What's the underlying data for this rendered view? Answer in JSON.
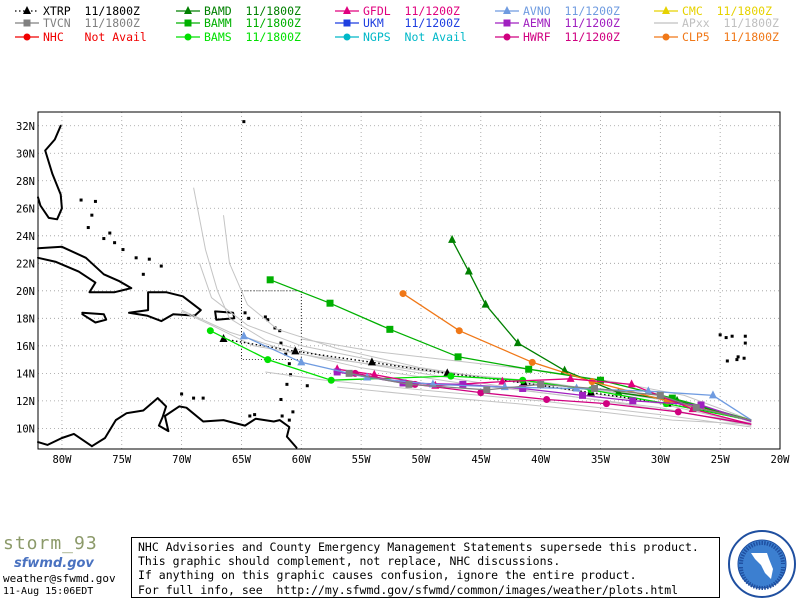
{
  "legend": [
    {
      "label": "XTRP  11/1800Z",
      "color": "#000000",
      "marker": "triangle",
      "dotted": true
    },
    {
      "label": "BAMD  11/1800Z",
      "color": "#008000",
      "marker": "triangle",
      "dotted": false
    },
    {
      "label": "GFDL  11/1200Z",
      "color": "#e0007e",
      "marker": "triangle",
      "dotted": false
    },
    {
      "label": "AVNO  11/1200Z",
      "color": "#6f9be0",
      "marker": "triangle",
      "dotted": false
    },
    {
      "label": "CMC  11/1800Z",
      "color": "#e6d200",
      "marker": "triangle",
      "dotted": false
    },
    {
      "label": "TVCN  11/1800Z",
      "color": "#808080",
      "marker": "square",
      "dotted": false
    },
    {
      "label": "BAMM  11/1800Z",
      "color": "#00b000",
      "marker": "square",
      "dotted": false
    },
    {
      "label": "UKM   11/1200Z",
      "color": "#1f3fe0",
      "marker": "square",
      "dotted": false
    },
    {
      "label": "AEMN  11/1200Z",
      "color": "#a020c0",
      "marker": "square",
      "dotted": false
    },
    {
      "label": "APxx  11/1800Z",
      "color": "#c0c0c0",
      "marker": "none",
      "dotted": false
    },
    {
      "label": "NHC   Not Avail",
      "color": "#f00000",
      "marker": "circle",
      "dotted": false
    },
    {
      "label": "BAMS  11/1800Z",
      "color": "#00e000",
      "marker": "circle",
      "dotted": false
    },
    {
      "label": "NGPS  Not Avail",
      "color": "#00b8c8",
      "marker": "circle",
      "dotted": false
    },
    {
      "label": "HWRF  11/1200Z",
      "color": "#d00080",
      "marker": "circle",
      "dotted": false
    },
    {
      "label": "CLP5  11/1800Z",
      "color": "#f07818",
      "marker": "circle",
      "dotted": false
    }
  ],
  "map": {
    "lat_labels": [
      "32N",
      "30N",
      "28N",
      "26N",
      "24N",
      "22N",
      "20N",
      "18N",
      "16N",
      "14N",
      "12N",
      "10N"
    ],
    "lon_labels": [
      "80W",
      "75W",
      "70W",
      "65W",
      "60W",
      "55W",
      "50W",
      "45W",
      "40W",
      "35W",
      "30W",
      "25W",
      "20W"
    ],
    "lat_range": [
      8.5,
      33
    ],
    "lon_range": [
      -82,
      -20
    ]
  },
  "tracks": [
    {
      "name": "XTRP",
      "color": "#000000",
      "dotted": true,
      "marker": "triangle",
      "points": [
        [
          -22.4,
          10.6
        ],
        [
          -29.4,
          11.8
        ],
        [
          -35.8,
          12.6
        ],
        [
          -41.4,
          13.3
        ],
        [
          -47.8,
          14.0
        ],
        [
          -54.1,
          14.8
        ],
        [
          -60.5,
          15.6
        ],
        [
          -66.5,
          16.5
        ]
      ]
    },
    {
      "name": "BAMD",
      "color": "#008000",
      "marker": "triangle",
      "points": [
        [
          -22.4,
          10.6
        ],
        [
          -28.6,
          12.0
        ],
        [
          -33.5,
          12.6
        ],
        [
          -38,
          14.2
        ],
        [
          -41.9,
          16.2
        ],
        [
          -44.6,
          19.0
        ],
        [
          -46.0,
          21.4
        ],
        [
          -47.4,
          23.7
        ]
      ]
    },
    {
      "name": "BAMM",
      "color": "#00b000",
      "marker": "square",
      "points": [
        [
          -22.4,
          10.6
        ],
        [
          -29.0,
          12.2
        ],
        [
          -35.0,
          13.5
        ],
        [
          -41.0,
          14.3
        ],
        [
          -46.9,
          15.2
        ],
        [
          -52.6,
          17.2
        ],
        [
          -57.6,
          19.1
        ],
        [
          -62.6,
          20.8
        ]
      ]
    },
    {
      "name": "BAMS",
      "color": "#00e000",
      "marker": "circle",
      "points": [
        [
          -22.4,
          10.6
        ],
        [
          -29.5,
          11.8
        ],
        [
          -35.8,
          12.8
        ],
        [
          -41.5,
          13.5
        ],
        [
          -47.5,
          13.8
        ],
        [
          -57.5,
          13.5
        ],
        [
          -62.8,
          15.0
        ],
        [
          -67.6,
          17.1
        ]
      ]
    },
    {
      "name": "CLP5",
      "color": "#f07818",
      "marker": "circle",
      "points": [
        [
          -22.4,
          10.6
        ],
        [
          -29.4,
          12.0
        ],
        [
          -35.7,
          13.4
        ],
        [
          -40.7,
          14.8
        ],
        [
          -46.8,
          17.1
        ],
        [
          -51.5,
          19.8
        ]
      ]
    },
    {
      "name": "GFDL",
      "color": "#e0007e",
      "marker": "triangle",
      "points": [
        [
          -22.4,
          10.3
        ],
        [
          -27.3,
          11.4
        ],
        [
          -32.4,
          13.2
        ],
        [
          -37.5,
          13.6
        ],
        [
          -43.2,
          13.4
        ],
        [
          -48.8,
          13.1
        ],
        [
          -53.9,
          13.9
        ],
        [
          -57.0,
          14.3
        ]
      ]
    },
    {
      "name": "HWRF",
      "color": "#d00080",
      "marker": "circle",
      "points": [
        [
          -22.4,
          10.3
        ],
        [
          -28.5,
          11.2
        ],
        [
          -34.5,
          11.8
        ],
        [
          -39.5,
          12.1
        ],
        [
          -45.0,
          12.6
        ],
        [
          -50.5,
          13.2
        ],
        [
          -55.5,
          14.0
        ]
      ]
    },
    {
      "name": "AEMN",
      "color": "#a020c0",
      "marker": "square",
      "points": [
        [
          -22.4,
          10.5
        ],
        [
          -26.6,
          11.7
        ],
        [
          -32.3,
          12.0
        ],
        [
          -36.5,
          12.4
        ],
        [
          -41.5,
          12.9
        ],
        [
          -46.5,
          13.2
        ],
        [
          -51.5,
          13.3
        ],
        [
          -57.0,
          14.1
        ]
      ]
    },
    {
      "name": "AVNO",
      "color": "#6f9be0",
      "marker": "triangle",
      "points": [
        [
          -22.4,
          10.6
        ],
        [
          -25.6,
          12.4
        ],
        [
          -31.0,
          12.7
        ],
        [
          -37.0,
          12.9
        ],
        [
          -43.0,
          13.0
        ],
        [
          -49.0,
          13.2
        ],
        [
          -54.5,
          13.7
        ],
        [
          -60.0,
          14.8
        ],
        [
          -64.8,
          16.7
        ]
      ]
    },
    {
      "name": "TVCN",
      "color": "#808080",
      "marker": "square",
      "points": [
        [
          -22.4,
          10.6
        ],
        [
          -27.0,
          11.5
        ],
        [
          -30.0,
          12.4
        ],
        [
          -35.5,
          12.9
        ],
        [
          -40.0,
          13.2
        ],
        [
          -44.5,
          12.8
        ],
        [
          -51.0,
          13.2
        ],
        [
          -56.0,
          14.0
        ]
      ]
    }
  ],
  "notice": {
    "line1": "NHC Advisories and County Emergency Management Statements supersede this product.",
    "line2": "This graphic should complement, not replace, NHC discussions.",
    "line3": "If anything on this graphic causes confusion, ignore the entire product.",
    "line4": "For full info, see  http://my.sfwmd.gov/sfwmd/common/images/weather/plots.html"
  },
  "footer": {
    "storm": "storm_93",
    "logo": "sfwmd.gov",
    "email": "weather@sfwmd.gov",
    "timestamp": "11-Aug 15:06EDT"
  }
}
